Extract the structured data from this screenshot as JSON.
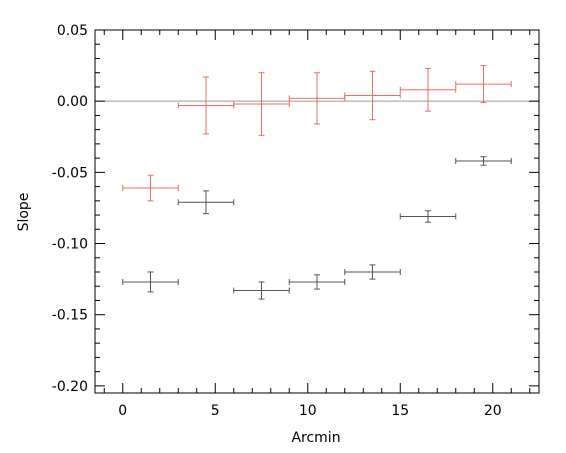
{
  "chart_data": {
    "type": "scatter",
    "title": "",
    "xlabel": "Arcmin",
    "ylabel": "Slope",
    "xlim": [
      -1.5,
      22.5
    ],
    "ylim": [
      -0.205,
      0.05
    ],
    "x_ticks": [
      0,
      5,
      10,
      15,
      20
    ],
    "x_tick_labels": [
      "0",
      "5",
      "10",
      "15",
      "20"
    ],
    "y_ticks": [
      0.05,
      0.0,
      -0.05,
      -0.1,
      -0.15,
      -0.2
    ],
    "y_tick_labels": [
      "0.05",
      "0.00",
      "-0.05",
      "-0.10",
      "-0.15",
      "-0.20"
    ],
    "reference_line_y": 0,
    "grid": false,
    "legend": "none",
    "series": [
      {
        "color": "#e8705f",
        "points": [
          {
            "x": 1.5,
            "y": -0.061,
            "x_err": 1.5,
            "y_err": 0.009
          },
          {
            "x": 4.5,
            "y": -0.003,
            "x_err": 1.5,
            "y_err": 0.02
          },
          {
            "x": 7.5,
            "y": -0.002,
            "x_err": 1.5,
            "y_err": 0.022
          },
          {
            "x": 10.5,
            "y": 0.002,
            "x_err": 1.5,
            "y_err": 0.018
          },
          {
            "x": 13.5,
            "y": 0.004,
            "x_err": 1.5,
            "y_err": 0.017
          },
          {
            "x": 16.5,
            "y": 0.008,
            "x_err": 1.5,
            "y_err": 0.015
          },
          {
            "x": 19.5,
            "y": 0.012,
            "x_err": 1.5,
            "y_err": 0.013
          }
        ]
      },
      {
        "color": "#555555",
        "points": [
          {
            "x": 1.5,
            "y": -0.127,
            "x_err": 1.5,
            "y_err": 0.007
          },
          {
            "x": 4.5,
            "y": -0.071,
            "x_err": 1.5,
            "y_err": 0.008
          },
          {
            "x": 7.5,
            "y": -0.133,
            "x_err": 1.5,
            "y_err": 0.006
          },
          {
            "x": 10.5,
            "y": -0.127,
            "x_err": 1.5,
            "y_err": 0.005
          },
          {
            "x": 13.5,
            "y": -0.12,
            "x_err": 1.5,
            "y_err": 0.005
          },
          {
            "x": 16.5,
            "y": -0.081,
            "x_err": 1.5,
            "y_err": 0.004
          },
          {
            "x": 19.5,
            "y": -0.042,
            "x_err": 1.5,
            "y_err": 0.003
          }
        ]
      }
    ]
  }
}
